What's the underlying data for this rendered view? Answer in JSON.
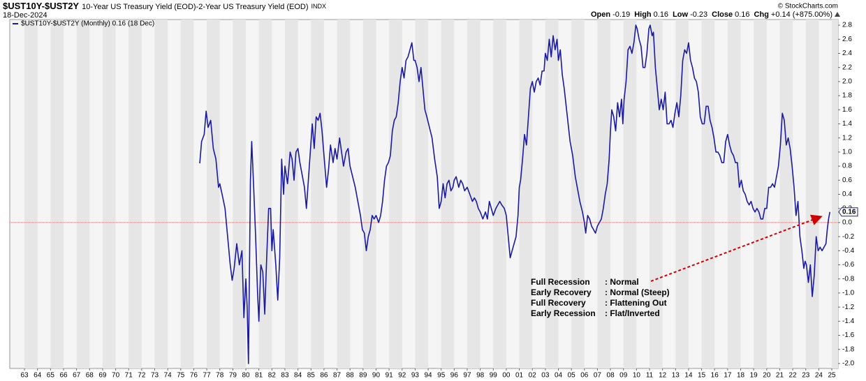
{
  "chart_data": {
    "type": "line",
    "symbol": "$UST10Y-$UST2Y",
    "title": "10-Year US Treasury Yield (EOD)-2-Year US Treasury Yield (EOD)",
    "exchange": "INDX",
    "date": "18-Dec-2024",
    "quote": [
      {
        "label": "Open",
        "text": "-0.19"
      },
      {
        "label": "High",
        "text": "0.16"
      },
      {
        "label": "Low",
        "text": "-0.23"
      },
      {
        "label": "Close",
        "text": "0.16"
      },
      {
        "label": "Chg",
        "text": "+0.14 (+875.00%)"
      }
    ],
    "credit": "© StockCharts.com",
    "last_value_label": "0.16",
    "reference_line": {
      "value": 0,
      "color": "#e06060"
    },
    "annotation": [
      [
        "Full Recession",
        ": Normal"
      ],
      [
        "Early Recovery",
        ": Normal (Steep)"
      ],
      [
        "Full Recovery",
        ": Flattening Out"
      ],
      [
        "Early Recession",
        ": Flat/Inverted"
      ]
    ],
    "xlim": [
      1961.87,
      2025.48
    ],
    "ylim": [
      -2.07,
      2.88
    ],
    "yaxis_side": "right",
    "grid": true,
    "xticks": [
      {
        "value": 1963,
        "label": "63"
      },
      {
        "value": 1964,
        "label": "64"
      },
      {
        "value": 1965,
        "label": "65"
      },
      {
        "value": 1966,
        "label": "66"
      },
      {
        "value": 1967,
        "label": "67"
      },
      {
        "value": 1968,
        "label": "68"
      },
      {
        "value": 1969,
        "label": "69"
      },
      {
        "value": 1970,
        "label": "70"
      },
      {
        "value": 1971,
        "label": "71"
      },
      {
        "value": 1972,
        "label": "72"
      },
      {
        "value": 1973,
        "label": "73"
      },
      {
        "value": 1974,
        "label": "74"
      },
      {
        "value": 1975,
        "label": "75"
      },
      {
        "value": 1976,
        "label": "76"
      },
      {
        "value": 1977,
        "label": "77"
      },
      {
        "value": 1978,
        "label": "78"
      },
      {
        "value": 1979,
        "label": "79"
      },
      {
        "value": 1980,
        "label": "80"
      },
      {
        "value": 1981,
        "label": "81"
      },
      {
        "value": 1982,
        "label": "82"
      },
      {
        "value": 1983,
        "label": "83"
      },
      {
        "value": 1984,
        "label": "84"
      },
      {
        "value": 1985,
        "label": "85"
      },
      {
        "value": 1986,
        "label": "86"
      },
      {
        "value": 1987,
        "label": "87"
      },
      {
        "value": 1988,
        "label": "88"
      },
      {
        "value": 1989,
        "label": "89"
      },
      {
        "value": 1990,
        "label": "90"
      },
      {
        "value": 1991,
        "label": "91"
      },
      {
        "value": 1992,
        "label": "92"
      },
      {
        "value": 1993,
        "label": "93"
      },
      {
        "value": 1994,
        "label": "94"
      },
      {
        "value": 1995,
        "label": "95"
      },
      {
        "value": 1996,
        "label": "96"
      },
      {
        "value": 1997,
        "label": "97"
      },
      {
        "value": 1998,
        "label": "98"
      },
      {
        "value": 1999,
        "label": "99"
      },
      {
        "value": 2000,
        "label": "00"
      },
      {
        "value": 2001,
        "label": "01"
      },
      {
        "value": 2002,
        "label": "02"
      },
      {
        "value": 2003,
        "label": "03"
      },
      {
        "value": 2004,
        "label": "04"
      },
      {
        "value": 2005,
        "label": "05"
      },
      {
        "value": 2006,
        "label": "06"
      },
      {
        "value": 2007,
        "label": "07"
      },
      {
        "value": 2008,
        "label": "08"
      },
      {
        "value": 2009,
        "label": "09"
      },
      {
        "value": 2010,
        "label": "10"
      },
      {
        "value": 2011,
        "label": "11"
      },
      {
        "value": 2012,
        "label": "12"
      },
      {
        "value": 2013,
        "label": "13"
      },
      {
        "value": 2014,
        "label": "14"
      },
      {
        "value": 2015,
        "label": "15"
      },
      {
        "value": 2016,
        "label": "16"
      },
      {
        "value": 2017,
        "label": "17"
      },
      {
        "value": 2018,
        "label": "18"
      },
      {
        "value": 2019,
        "label": "19"
      },
      {
        "value": 2020,
        "label": "20"
      },
      {
        "value": 2021,
        "label": "21"
      },
      {
        "value": 2022,
        "label": "22"
      },
      {
        "value": 2023,
        "label": "23"
      },
      {
        "value": 2024,
        "label": "24"
      },
      {
        "value": 2025,
        "label": "25"
      }
    ],
    "yticks": [
      2.8,
      2.6,
      2.4,
      2.2,
      {
        "value": 2,
        "label": "2.0"
      },
      1.8,
      1.6,
      1.4,
      1.2,
      {
        "value": 1,
        "label": "1.0"
      },
      0.8,
      0.6,
      0.4,
      0.2,
      {
        "value": 0,
        "label": "0.0"
      },
      -0.2,
      -0.4,
      -0.6,
      -0.8,
      {
        "value": -1,
        "label": "-1.0"
      },
      -1.2,
      -1.4,
      -1.6,
      -1.8,
      {
        "value": -2,
        "label": "-2.0"
      }
    ],
    "x": [
      1976.46,
      1976.6,
      1976.8,
      1976.95,
      1977.1,
      1977.3,
      1977.5,
      1977.7,
      1977.9,
      1978.0,
      1978.2,
      1978.4,
      1978.6,
      1978.8,
      1978.95,
      1979.1,
      1979.3,
      1979.5,
      1979.7,
      1979.85,
      1980.0,
      1980.1,
      1980.2,
      1980.35,
      1980.45,
      1980.6,
      1980.75,
      1980.9,
      1981.0,
      1981.15,
      1981.3,
      1981.45,
      1981.6,
      1981.75,
      1981.9,
      1982.0,
      1982.1,
      1982.3,
      1982.45,
      1982.6,
      1982.75,
      1982.9,
      1983.0,
      1983.2,
      1983.4,
      1983.55,
      1983.7,
      1983.85,
      1984.0,
      1984.15,
      1984.3,
      1984.5,
      1984.65,
      1984.8,
      1984.95,
      1985.1,
      1985.25,
      1985.4,
      1985.55,
      1985.7,
      1985.85,
      1986.0,
      1986.2,
      1986.35,
      1986.5,
      1986.7,
      1986.85,
      1987.0,
      1987.2,
      1987.35,
      1987.5,
      1987.7,
      1987.85,
      1988.0,
      1988.2,
      1988.4,
      1988.6,
      1988.8,
      1988.95,
      1989.1,
      1989.25,
      1989.4,
      1989.55,
      1989.7,
      1989.85,
      1990.0,
      1990.2,
      1990.35,
      1990.5,
      1990.65,
      1990.8,
      1990.95,
      1991.1,
      1991.25,
      1991.4,
      1991.55,
      1991.7,
      1991.85,
      1992.0,
      1992.15,
      1992.3,
      1992.45,
      1992.6,
      1992.75,
      1992.9,
      1993.0,
      1993.15,
      1993.3,
      1993.45,
      1993.6,
      1993.75,
      1993.9,
      1994.1,
      1994.3,
      1994.5,
      1994.7,
      1994.85,
      1995.0,
      1995.15,
      1995.3,
      1995.45,
      1995.6,
      1995.75,
      1995.9,
      1996.0,
      1996.15,
      1996.35,
      1996.5,
      1996.65,
      1996.8,
      1997.0,
      1997.2,
      1997.4,
      1997.55,
      1997.7,
      1997.85,
      1998.0,
      1998.2,
      1998.4,
      1998.55,
      1998.7,
      1998.85,
      1999.0,
      1999.2,
      1999.35,
      1999.5,
      1999.65,
      1999.85,
      2000.0,
      2000.15,
      2000.3,
      2000.45,
      2000.6,
      2000.75,
      2000.9,
      2001.0,
      2001.1,
      2001.25,
      2001.4,
      2001.55,
      2001.7,
      2001.85,
      2002.0,
      2002.15,
      2002.3,
      2002.45,
      2002.6,
      2002.75,
      2002.9,
      2003.0,
      2003.15,
      2003.3,
      2003.45,
      2003.6,
      2003.75,
      2003.9,
      2004.0,
      2004.15,
      2004.3,
      2004.45,
      2004.6,
      2004.75,
      2004.9,
      2005.1,
      2005.3,
      2005.5,
      2005.65,
      2005.85,
      2006.0,
      2006.1,
      2006.25,
      2006.4,
      2006.55,
      2006.7,
      2006.85,
      2007.0,
      2007.15,
      2007.3,
      2007.45,
      2007.6,
      2007.75,
      2007.9,
      2008.0,
      2008.1,
      2008.25,
      2008.4,
      2008.55,
      2008.7,
      2008.85,
      2008.95,
      2009.05,
      2009.2,
      2009.35,
      2009.5,
      2009.65,
      2009.8,
      2009.95,
      2010.05,
      2010.2,
      2010.35,
      2010.5,
      2010.65,
      2010.8,
      2010.95,
      2011.05,
      2011.2,
      2011.3,
      2011.45,
      2011.6,
      2011.75,
      2011.9,
      2012.05,
      2012.2,
      2012.35,
      2012.5,
      2012.65,
      2012.8,
      2012.95,
      2013.1,
      2013.25,
      2013.4,
      2013.55,
      2013.7,
      2013.85,
      2014.0,
      2014.15,
      2014.3,
      2014.45,
      2014.6,
      2014.75,
      2014.9,
      2015.05,
      2015.2,
      2015.35,
      2015.5,
      2015.65,
      2015.8,
      2015.95,
      2016.1,
      2016.25,
      2016.4,
      2016.55,
      2016.7,
      2016.85,
      2017.0,
      2017.15,
      2017.3,
      2017.45,
      2017.6,
      2017.75,
      2017.9,
      2018.05,
      2018.2,
      2018.35,
      2018.5,
      2018.65,
      2018.8,
      2018.95,
      2019.1,
      2019.25,
      2019.4,
      2019.55,
      2019.7,
      2019.85,
      2020.0,
      2020.15,
      2020.3,
      2020.45,
      2020.6,
      2020.75,
      2020.9,
      2021.05,
      2021.2,
      2021.35,
      2021.5,
      2021.65,
      2021.8,
      2021.95,
      2022.1,
      2022.25,
      2022.4,
      2022.55,
      2022.7,
      2022.85,
      2022.95,
      2023.05,
      2023.2,
      2023.35,
      2023.5,
      2023.65,
      2023.8,
      2023.95,
      2024.1,
      2024.25,
      2024.4,
      2024.55,
      2024.65,
      2024.75,
      2024.85
    ],
    "series": [
      {
        "name": "$UST10Y-$UST2Y (Monthly) 0.16 (18 Dec)",
        "color": "#1a1aa0",
        "values": [
          0.84,
          1.15,
          1.25,
          1.58,
          1.35,
          1.45,
          1.05,
          0.9,
          0.5,
          0.55,
          0.38,
          0.2,
          -0.2,
          -0.6,
          -0.82,
          -0.65,
          -0.3,
          -0.6,
          -0.4,
          -1.35,
          -0.8,
          -1.2,
          -2.0,
          0.6,
          1.15,
          0.5,
          -0.2,
          -1.0,
          -1.4,
          -0.6,
          -0.7,
          -1.3,
          -0.5,
          0.2,
          0.2,
          -0.4,
          -0.1,
          -0.6,
          -1.1,
          -0.5,
          0.9,
          0.4,
          0.8,
          0.55,
          1.0,
          0.9,
          0.6,
          1.0,
          1.05,
          0.85,
          0.7,
          0.5,
          0.2,
          0.6,
          1.0,
          1.4,
          1.05,
          1.5,
          1.45,
          1.55,
          1.3,
          0.95,
          0.5,
          0.75,
          1.1,
          0.85,
          1.05,
          0.9,
          1.2,
          1.0,
          0.8,
          1.0,
          1.05,
          0.8,
          0.65,
          0.5,
          0.3,
          0.1,
          -0.1,
          -0.15,
          -0.4,
          -0.2,
          -0.1,
          0.1,
          0.05,
          0.1,
          0.0,
          0.1,
          0.3,
          0.6,
          0.8,
          0.85,
          0.95,
          1.3,
          1.45,
          1.5,
          1.7,
          2.0,
          2.2,
          2.05,
          2.3,
          2.35,
          2.45,
          2.55,
          2.3,
          2.3,
          2.2,
          2.0,
          2.2,
          1.9,
          1.6,
          1.5,
          1.35,
          1.2,
          0.9,
          0.65,
          0.2,
          0.3,
          0.55,
          0.35,
          0.55,
          0.6,
          0.45,
          0.5,
          0.6,
          0.65,
          0.5,
          0.6,
          0.55,
          0.45,
          0.5,
          0.4,
          0.3,
          0.35,
          0.3,
          0.2,
          0.15,
          0.05,
          0.15,
          0.05,
          0.3,
          0.2,
          0.1,
          0.2,
          0.25,
          0.3,
          0.25,
          0.2,
          0.1,
          -0.2,
          -0.5,
          -0.4,
          -0.3,
          -0.2,
          0.1,
          0.5,
          0.6,
          0.9,
          1.25,
          1.1,
          1.5,
          1.9,
          2.0,
          1.85,
          2.0,
          2.05,
          1.95,
          2.15,
          2.15,
          2.4,
          2.3,
          2.6,
          2.35,
          2.65,
          2.45,
          2.6,
          2.3,
          2.45,
          2.1,
          1.9,
          1.65,
          1.4,
          1.15,
          0.95,
          0.65,
          0.45,
          0.3,
          0.15,
          0.0,
          -0.15,
          0.1,
          0.05,
          -0.05,
          -0.1,
          -0.15,
          -0.05,
          0.0,
          0.05,
          0.2,
          0.4,
          0.55,
          0.9,
          1.3,
          1.6,
          1.5,
          1.3,
          1.7,
          1.5,
          1.75,
          1.4,
          1.75,
          2.0,
          2.45,
          2.5,
          2.4,
          2.55,
          2.8,
          2.75,
          2.6,
          2.5,
          2.2,
          2.2,
          2.4,
          2.75,
          2.8,
          2.65,
          2.7,
          2.2,
          1.9,
          1.6,
          1.75,
          1.6,
          1.85,
          1.4,
          1.4,
          1.45,
          1.35,
          1.55,
          1.7,
          1.5,
          1.8,
          2.3,
          2.45,
          2.4,
          2.55,
          2.3,
          2.2,
          2.05,
          2.0,
          1.85,
          1.5,
          1.4,
          1.4,
          1.65,
          1.65,
          1.45,
          1.35,
          1.2,
          1.0,
          1.0,
          0.95,
          0.85,
          0.85,
          1.15,
          1.25,
          1.1,
          1.0,
          0.95,
          0.85,
          0.85,
          0.5,
          0.6,
          0.45,
          0.4,
          0.3,
          0.25,
          0.3,
          0.2,
          0.15,
          0.2,
          0.15,
          0.05,
          0.05,
          0.2,
          0.2,
          0.5,
          0.5,
          0.55,
          0.5,
          0.65,
          0.8,
          1.1,
          1.55,
          1.45,
          1.1,
          1.2,
          1.05,
          0.8,
          0.5,
          0.1,
          0.3,
          -0.2,
          -0.4,
          -0.65,
          -0.55,
          -0.6,
          -0.85,
          -0.6,
          -1.05,
          -0.75,
          -0.2,
          -0.4,
          -0.35,
          -0.4,
          -0.35,
          -0.3,
          -0.1,
          0.05,
          0.15
        ]
      }
    ]
  }
}
